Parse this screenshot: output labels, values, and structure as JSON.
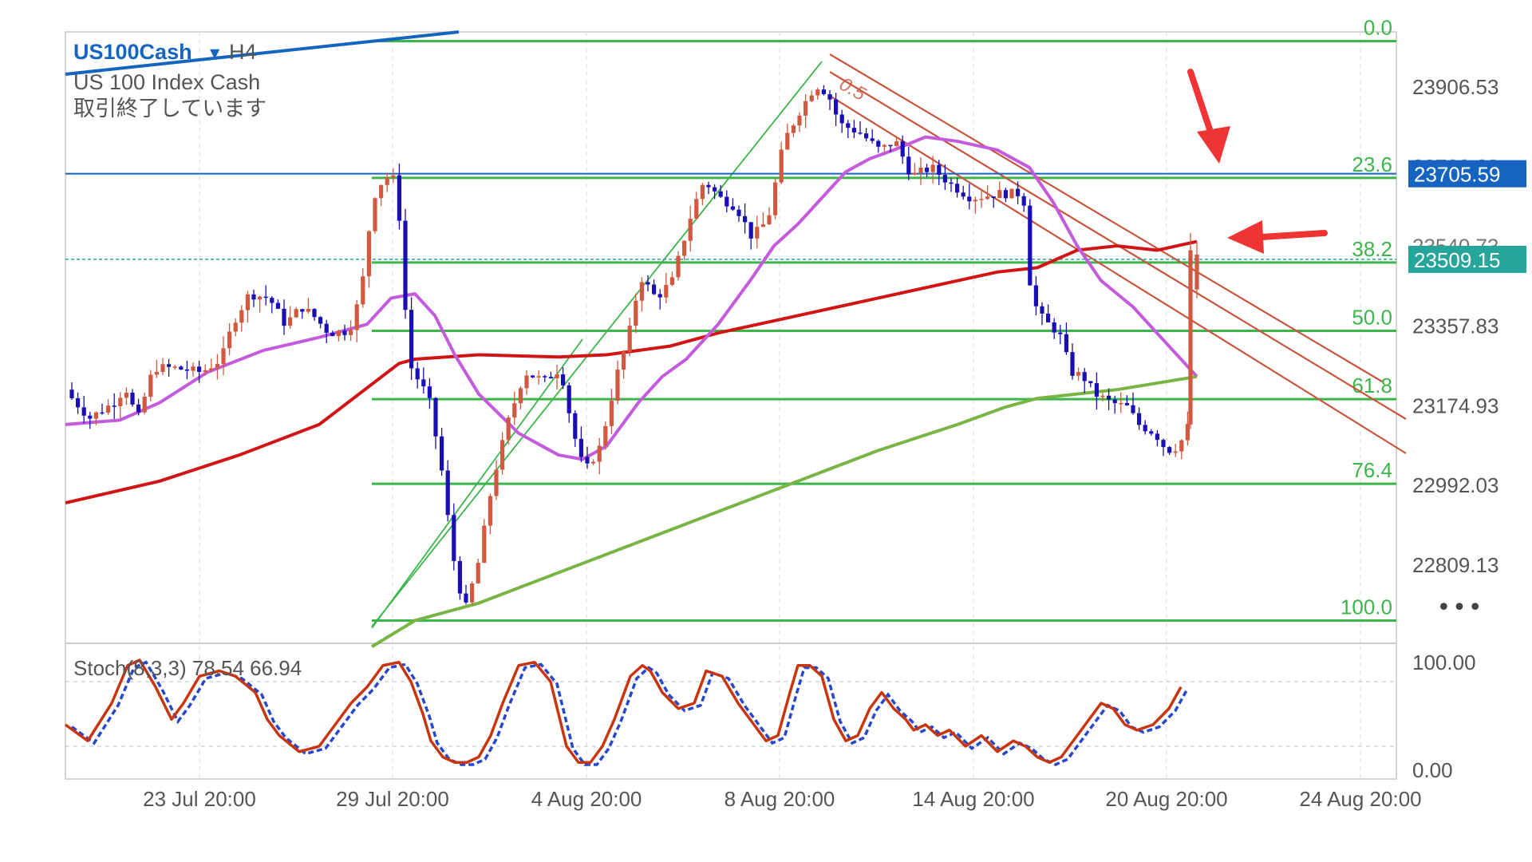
{
  "header": {
    "symbol": "US100Cash",
    "timeframe": "H4",
    "name": "US 100 Index Cash",
    "status": "取引終了しています"
  },
  "more_label": "•••",
  "chart_data": {
    "type": "candlestick",
    "symbol": "US100Cash",
    "timeframe": "H4",
    "price_ticks": [
      23906.53,
      23357.83,
      23174.93,
      22992.03,
      22809.13
    ],
    "hidden_ticks": [
      23723.63,
      23540.73
    ],
    "ylim": [
      22680,
      24010
    ],
    "x_ticks": [
      "23 Jul 20:00",
      "29 Jul 20:00",
      "4 Aug 20:00",
      "8 Aug 20:00",
      "14 Aug 20:00",
      "20 Aug 20:00",
      "24 Aug 20:00"
    ],
    "price_labels": [
      {
        "value": 23705.59,
        "text": "23705.59",
        "color": "#1565c0"
      },
      {
        "value": 23509.15,
        "text": "23509.15",
        "color": "#26a69a"
      }
    ],
    "fibonacci": {
      "high": 24010,
      "low": 22680,
      "levels": [
        {
          "ratio": 0.0,
          "label": "0.0"
        },
        {
          "ratio": 0.236,
          "label": "23.6"
        },
        {
          "ratio": 0.382,
          "label": "38.2"
        },
        {
          "ratio": 0.5,
          "label": "50.0"
        },
        {
          "ratio": 0.618,
          "label": "61.8"
        },
        {
          "ratio": 0.764,
          "label": "76.4"
        },
        {
          "ratio": 1.0,
          "label": "100.0"
        }
      ],
      "color": "#3cb54a"
    },
    "channel_label": "0.5",
    "stochastic": {
      "label": "Stoch(8,3,3) 78.54 66.94",
      "k": 78.54,
      "d": 66.94,
      "ticks": [
        100,
        0
      ],
      "tick_labels": [
        "100.00",
        "0.00"
      ],
      "levels": [
        80,
        20
      ]
    },
    "colors": {
      "bull": "#d1593f",
      "bear": "#1a0fb5",
      "ma_red": "#d11414",
      "ma_purple": "#c35bdc",
      "ma_green": "#78b545",
      "hline": "#1565c0",
      "channel": "#c8553d",
      "stoch_k": "#c8360f",
      "stoch_d": "#2748c9",
      "arrow": "#ef3434"
    }
  }
}
